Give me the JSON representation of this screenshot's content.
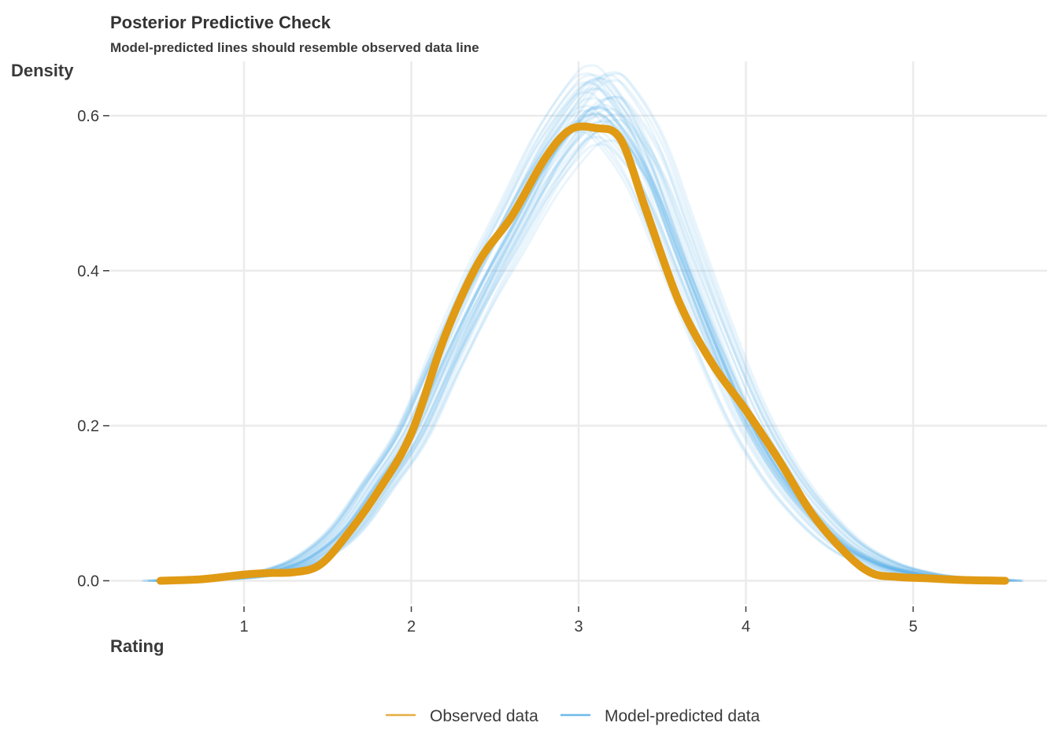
{
  "chart_data": {
    "type": "line",
    "title": "Posterior Predictive Check",
    "subtitle": "Model-predicted lines should resemble observed data line",
    "xlabel": "Rating",
    "ylabel": "Density",
    "xlim": [
      0.2,
      5.8
    ],
    "ylim": [
      -0.03,
      0.67
    ],
    "x_ticks": [
      1,
      2,
      3,
      4,
      5
    ],
    "y_ticks": [
      0.0,
      0.2,
      0.4,
      0.6
    ],
    "x_tick_labels": [
      "1",
      "2",
      "3",
      "4",
      "5"
    ],
    "y_tick_labels": [
      "0.0",
      "0.2",
      "0.4",
      "0.6"
    ],
    "grid": true,
    "legend_position": "bottom",
    "colors": {
      "observed": "#e09a13",
      "predicted": "#5db3ea",
      "grid": "#ebebeb"
    },
    "series": [
      {
        "name": "Observed data",
        "x": [
          0.5,
          0.75,
          1.0,
          1.15,
          1.3,
          1.45,
          1.6,
          1.8,
          2.0,
          2.2,
          2.4,
          2.6,
          2.8,
          2.95,
          3.1,
          3.25,
          3.4,
          3.6,
          3.8,
          4.0,
          4.2,
          4.4,
          4.6,
          4.75,
          4.9,
          5.1,
          5.3,
          5.55
        ],
        "y": [
          0.0,
          0.002,
          0.008,
          0.01,
          0.011,
          0.02,
          0.055,
          0.115,
          0.19,
          0.315,
          0.41,
          0.47,
          0.545,
          0.582,
          0.584,
          0.57,
          0.48,
          0.36,
          0.28,
          0.22,
          0.155,
          0.085,
          0.035,
          0.01,
          0.005,
          0.003,
          0.001,
          0.0
        ]
      },
      {
        "name": "Model-predicted data",
        "x": [
          0.5,
          0.75,
          1.0,
          1.2,
          1.4,
          1.6,
          1.8,
          2.0,
          2.2,
          2.4,
          2.6,
          2.8,
          3.0,
          3.1,
          3.2,
          3.4,
          3.6,
          3.8,
          4.0,
          4.2,
          4.4,
          4.6,
          4.8,
          5.0,
          5.2,
          5.55
        ],
        "y": [
          0.0,
          0.0015,
          0.005,
          0.013,
          0.03,
          0.065,
          0.125,
          0.19,
          0.285,
          0.375,
          0.455,
          0.535,
          0.595,
          0.61,
          0.6,
          0.535,
          0.425,
          0.315,
          0.215,
          0.14,
          0.085,
          0.045,
          0.022,
          0.01,
          0.004,
          0.0
        ]
      }
    ],
    "predicted_draws": 40
  }
}
